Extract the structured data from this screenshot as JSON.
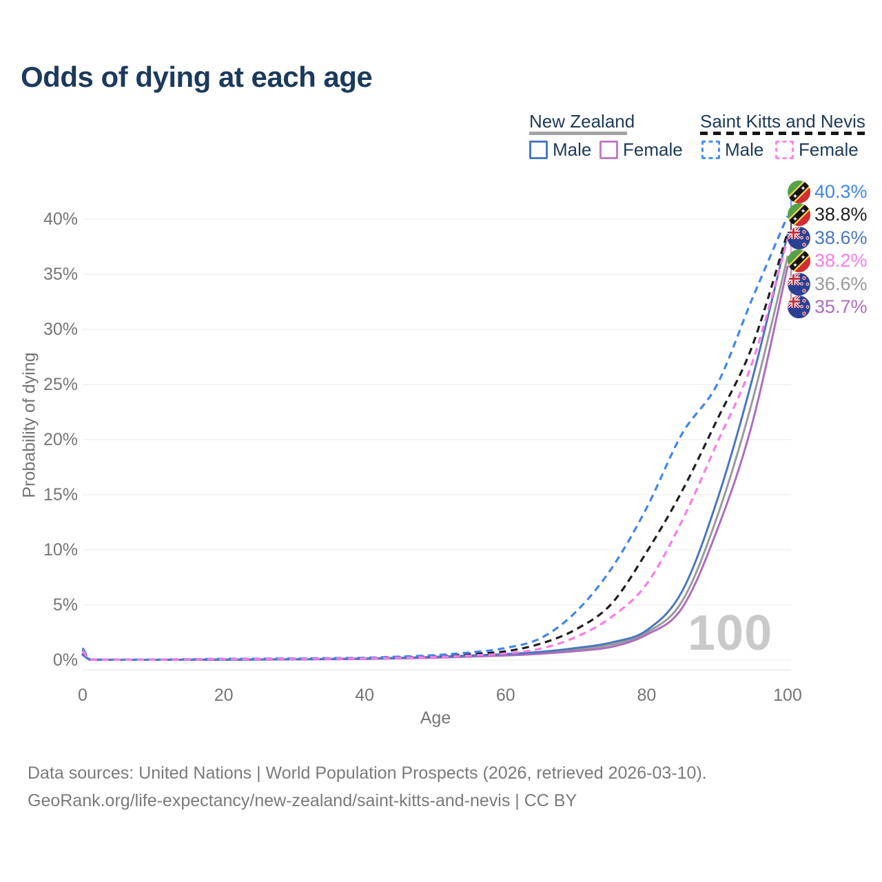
{
  "title": "Odds of dying at each age",
  "legend": {
    "group1": {
      "name": "New Zealand",
      "style": "solid",
      "items": [
        {
          "label": "Male"
        },
        {
          "label": "Female"
        }
      ]
    },
    "group2": {
      "name": "Saint Kitts and Nevis",
      "style": "dashed",
      "items": [
        {
          "label": "Male"
        },
        {
          "label": "Female"
        }
      ]
    }
  },
  "watermark": "100",
  "footer": {
    "line1": "Data sources: United Nations | World Population Prospects (2026, retrieved 2026-03-10).",
    "line2": "GeoRank.org/life-expectancy/new-zealand/saint-kitts-and-nevis | CC BY"
  },
  "chart_data": {
    "type": "line",
    "title": "Odds of dying at each age",
    "xlabel": "Age",
    "ylabel": "Probability of dying",
    "xlim": [
      0,
      100
    ],
    "ylim": [
      0,
      42
    ],
    "grid": "horizontal",
    "legend_position": "top-right",
    "x_ticks": [
      {
        "v": 0,
        "label": "0"
      },
      {
        "v": 20,
        "label": "20"
      },
      {
        "v": 40,
        "label": "40"
      },
      {
        "v": 60,
        "label": "60"
      },
      {
        "v": 80,
        "label": "80"
      },
      {
        "v": 100,
        "label": "100"
      }
    ],
    "y_ticks": [
      {
        "p": 0,
        "label": "0%"
      },
      {
        "p": 5,
        "label": "5%"
      },
      {
        "p": 10,
        "label": "10%"
      },
      {
        "p": 15,
        "label": "15%"
      },
      {
        "p": 20,
        "label": "20%"
      },
      {
        "p": 25,
        "label": "25%"
      },
      {
        "p": 30,
        "label": "30%"
      },
      {
        "p": 35,
        "label": "35%"
      },
      {
        "p": 40,
        "label": "40%"
      }
    ],
    "x": [
      0,
      1,
      2,
      5,
      10,
      15,
      20,
      25,
      30,
      35,
      40,
      45,
      50,
      55,
      60,
      65,
      70,
      75,
      80,
      85,
      90,
      95,
      100
    ],
    "series": [
      {
        "name": "Saint Kitts and Nevis Male",
        "country": "Saint Kitts and Nevis",
        "sex": "Male",
        "flag": "skn",
        "style": "dashed",
        "color": "#3f86e8",
        "values": [
          1.1,
          0.07,
          0.06,
          0.045,
          0.05,
          0.08,
          0.12,
          0.13,
          0.15,
          0.18,
          0.22,
          0.32,
          0.45,
          0.7,
          1.1,
          2.0,
          4.4,
          8.3,
          13.8,
          20.5,
          25.0,
          32.8,
          40.3
        ],
        "end_label": "40.3%"
      },
      {
        "name": "Saint Kitts and Nevis Both sexes",
        "country": "Saint Kitts and Nevis",
        "sex": "Both",
        "flag": "skn",
        "style": "dashed",
        "color": "#1e1e1e",
        "values": [
          0.95,
          0.06,
          0.05,
          0.04,
          0.045,
          0.07,
          0.1,
          0.11,
          0.13,
          0.15,
          0.18,
          0.26,
          0.35,
          0.55,
          0.8,
          1.5,
          2.8,
          5.1,
          9.8,
          15.3,
          21.8,
          28.5,
          38.8
        ],
        "end_label": "38.8%"
      },
      {
        "name": "New Zealand Male",
        "country": "New Zealand",
        "sex": "Male",
        "flag": "nz",
        "style": "solid",
        "color": "#4a77bd",
        "values": [
          0.55,
          0.045,
          0.04,
          0.02,
          0.02,
          0.035,
          0.05,
          0.06,
          0.08,
          0.11,
          0.15,
          0.21,
          0.3,
          0.42,
          0.55,
          0.75,
          1.1,
          1.6,
          2.7,
          6.2,
          14.5,
          25.5,
          38.6
        ],
        "end_label": "38.6%"
      },
      {
        "name": "Saint Kitts and Nevis Female",
        "country": "Saint Kitts and Nevis",
        "sex": "Female",
        "flag": "skn",
        "style": "dashed",
        "color": "#f87be8",
        "values": [
          0.85,
          0.055,
          0.045,
          0.035,
          0.04,
          0.06,
          0.09,
          0.1,
          0.11,
          0.13,
          0.16,
          0.21,
          0.28,
          0.42,
          0.6,
          1.05,
          2.1,
          3.9,
          6.9,
          12.6,
          19.7,
          27.0,
          38.2
        ],
        "end_label": "38.2%"
      },
      {
        "name": "New Zealand Both sexes",
        "country": "New Zealand",
        "sex": "Both",
        "flag": "nz",
        "style": "solid",
        "color": "#9a9a9a",
        "values": [
          0.5,
          0.04,
          0.035,
          0.018,
          0.018,
          0.03,
          0.045,
          0.055,
          0.07,
          0.1,
          0.13,
          0.19,
          0.26,
          0.36,
          0.48,
          0.66,
          0.95,
          1.4,
          2.5,
          5.3,
          13.0,
          23.5,
          36.6
        ],
        "end_label": "36.6%"
      },
      {
        "name": "New Zealand Female",
        "country": "New Zealand",
        "sex": "Female",
        "flag": "nz",
        "style": "solid",
        "color": "#ae6cbe",
        "values": [
          0.45,
          0.035,
          0.03,
          0.015,
          0.015,
          0.028,
          0.04,
          0.05,
          0.06,
          0.08,
          0.11,
          0.16,
          0.22,
          0.32,
          0.42,
          0.58,
          0.82,
          1.2,
          2.3,
          4.7,
          11.8,
          21.5,
          35.7
        ],
        "end_label": "35.7%"
      }
    ]
  },
  "colors": {
    "title": "#1b3a5c",
    "axis_text": "#757575",
    "gridline": "#ededed",
    "watermark": "#c9c9c9",
    "nz_underline": "#a3a3a3",
    "skn_underline": "#161616"
  }
}
